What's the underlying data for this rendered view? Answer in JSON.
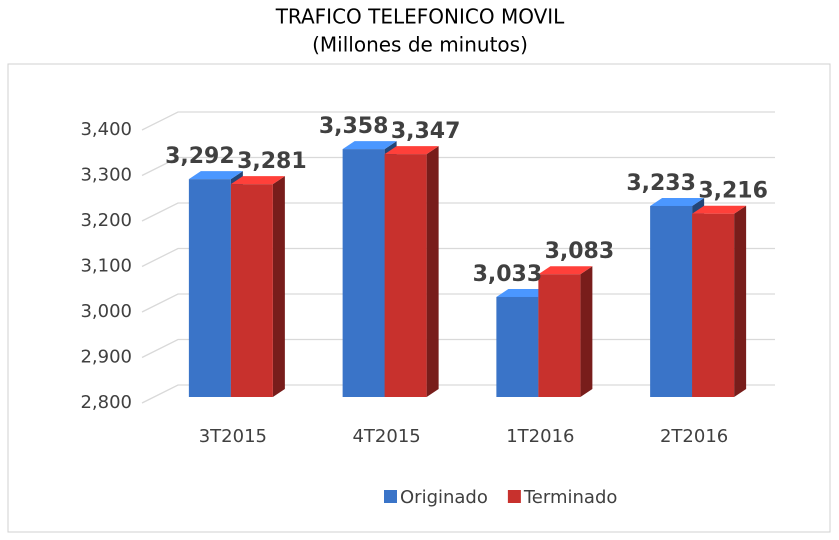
{
  "chart_data": {
    "type": "bar3d",
    "title": "TRAFICO TELEFONICO MOVIL",
    "subtitle": "(Millones de minutos)",
    "categories": [
      "3T2015",
      "4T2015",
      "1T2016",
      "2T2016"
    ],
    "series": [
      {
        "name": "Originado",
        "color": "#3a74c8",
        "values": [
          3292,
          3358,
          3033,
          3233
        ],
        "value_labels": [
          "3,292",
          "3,358",
          "3,033",
          "3,233"
        ]
      },
      {
        "name": "Terminado",
        "color": "#c8312d",
        "values": [
          3281,
          3347,
          3083,
          3216
        ],
        "value_labels": [
          "3,281",
          "3,347",
          "3,083",
          "3,216"
        ]
      }
    ],
    "ylim": [
      2800,
      3400
    ],
    "yticks": [
      {
        "value": 2800,
        "label": "2,800"
      },
      {
        "value": 2900,
        "label": "2,900"
      },
      {
        "value": 3000,
        "label": "3,000"
      },
      {
        "value": 3100,
        "label": "3,100"
      },
      {
        "value": 3200,
        "label": "3,200"
      },
      {
        "value": 3300,
        "label": "3,300"
      },
      {
        "value": 3400,
        "label": "3,400"
      }
    ],
    "grid": true,
    "legend": "bottom"
  }
}
